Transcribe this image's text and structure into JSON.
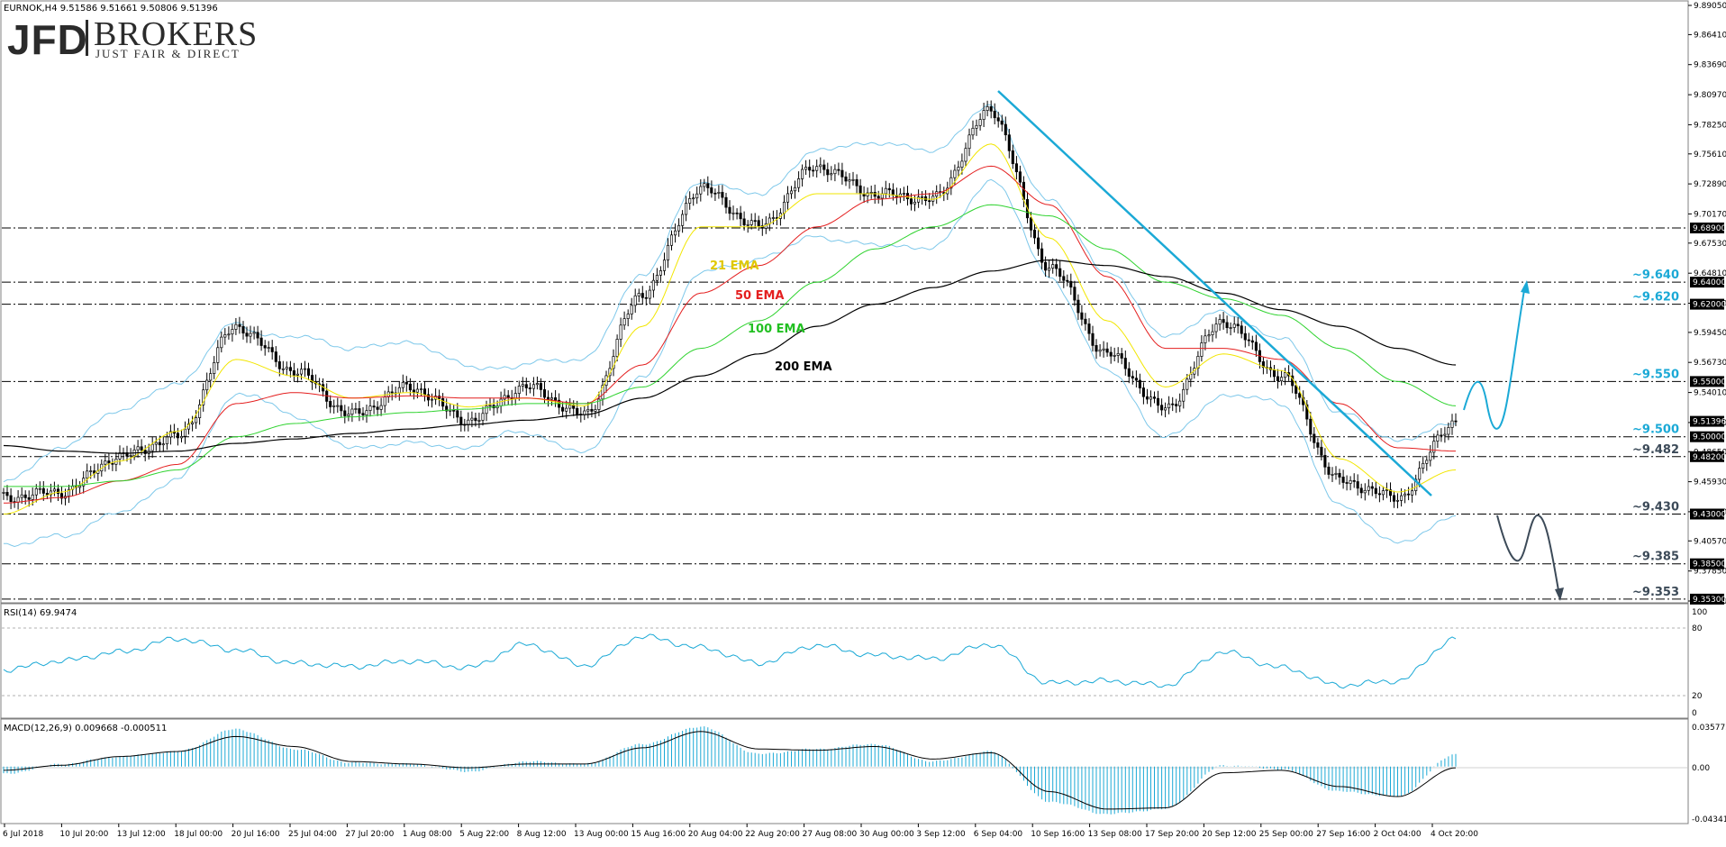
{
  "header": {
    "symbol_line": "EURNOK,H4  9.51586 9.51661 9.50806 9.51396",
    "logo_main": "JFD",
    "logo_secondary": "BROKERS",
    "logo_tagline": "JUST FAIR & DIRECT"
  },
  "colors": {
    "candles": "#000000",
    "ema21": "#f2e600",
    "ema50": "#e41f1f",
    "ema100": "#2fd32f",
    "ema200": "#000000",
    "bollinger": "#7ec8ea",
    "trendline": "#1ba9d6",
    "level_label": "#1ba9d6",
    "scenario_up": "#1ba9d6",
    "scenario_down": "#3c4a58",
    "rsi_line": "#1ba9d6",
    "macd_hist": "#1ba9d6",
    "macd_signal": "#000000"
  },
  "price_axis": {
    "ticks": [
      "9.89050",
      "9.86410",
      "9.83690",
      "9.80970",
      "9.78250",
      "9.75610",
      "9.72890",
      "9.70170",
      "9.67530",
      "9.64810",
      "9.62090",
      "9.59450",
      "9.56730",
      "9.54010",
      "9.51290",
      "9.48650",
      "9.45930",
      "9.43210",
      "9.40570",
      "9.37850",
      "9.35130"
    ],
    "tags": [
      "9.68900",
      "9.64000",
      "9.62000",
      "9.55000",
      "9.51396",
      "9.50000",
      "9.48200",
      "9.43000",
      "9.38500",
      "9.35300"
    ]
  },
  "levels": [
    {
      "label": "~9.640",
      "value": 9.64,
      "label_color": "#1ba9d6"
    },
    {
      "label": "~9.620",
      "value": 9.62,
      "label_color": "#1ba9d6"
    },
    {
      "label": "~9.550",
      "value": 9.55,
      "label_color": "#1ba9d6"
    },
    {
      "label": "~9.500",
      "value": 9.5,
      "label_color": "#1ba9d6"
    },
    {
      "label": "~9.482",
      "value": 9.482,
      "label_color": "#3c4a58"
    },
    {
      "label": "~9.430",
      "value": 9.43,
      "label_color": "#3c4a58"
    },
    {
      "label": "~9.385",
      "value": 9.385,
      "label_color": "#3c4a58"
    },
    {
      "label": "~9.353",
      "value": 9.353,
      "label_color": "#3c4a58"
    }
  ],
  "extra_levels": [
    9.689
  ],
  "ema_labels": [
    {
      "text": "21 EMA",
      "color": "#e0c800"
    },
    {
      "text": "50 EMA",
      "color": "#e41f1f"
    },
    {
      "text": "100 EMA",
      "color": "#22c022"
    },
    {
      "text": "200 EMA",
      "color": "#000000"
    }
  ],
  "x_axis": {
    "labels": [
      "6 Jul 2018",
      "10 Jul 20:00",
      "13 Jul 12:00",
      "18 Jul 00:00",
      "20 Jul 16:00",
      "25 Jul 04:00",
      "27 Jul 20:00",
      "1 Aug 08:00",
      "5 Aug 22:00",
      "8 Aug 12:00",
      "13 Aug 00:00",
      "15 Aug 16:00",
      "20 Aug 04:00",
      "22 Aug 20:00",
      "27 Aug 08:00",
      "30 Aug 00:00",
      "3 Sep 12:00",
      "6 Sep 04:00",
      "10 Sep 16:00",
      "13 Sep 08:00",
      "17 Sep 20:00",
      "20 Sep 12:00",
      "25 Sep 00:00",
      "27 Sep 16:00",
      "2 Oct 04:00",
      "4 Oct 20:00"
    ]
  },
  "rsi": {
    "title": "RSI(14) 69.9474",
    "axis_labels": [
      "100",
      "80",
      "20",
      "0"
    ]
  },
  "macd": {
    "title": "MACD(12,26,9) 0.009668 -0.000511",
    "axis_labels": [
      "0.035775",
      "0.00",
      "-0.04341"
    ]
  },
  "chart_data": [
    {
      "type": "line",
      "title": "EURNOK,H4",
      "description_series": "approximate close prices, one point every ~3 trading days",
      "x": [
        "6 Jul 2018",
        "10 Jul 20:00",
        "13 Jul 12:00",
        "18 Jul 00:00",
        "20 Jul 16:00",
        "25 Jul 04:00",
        "27 Jul 20:00",
        "1 Aug 08:00",
        "5 Aug 22:00",
        "8 Aug 12:00",
        "13 Aug 00:00",
        "15 Aug 16:00",
        "20 Aug 04:00",
        "22 Aug 20:00",
        "27 Aug 08:00",
        "30 Aug 00:00",
        "3 Sep 12:00",
        "6 Sep 04:00",
        "10 Sep 16:00",
        "13 Sep 08:00",
        "17 Sep 20:00",
        "20 Sep 12:00",
        "25 Sep 00:00",
        "27 Sep 16:00",
        "2 Oct 04:00",
        "4 Oct 20:00"
      ],
      "close": [
        9.445,
        9.45,
        9.482,
        9.5,
        9.6,
        9.56,
        9.52,
        9.545,
        9.515,
        9.545,
        9.52,
        9.63,
        9.725,
        9.69,
        9.745,
        9.72,
        9.715,
        9.795,
        9.655,
        9.575,
        9.525,
        9.605,
        9.555,
        9.46,
        9.445,
        9.514
      ],
      "series": [
        {
          "name": "21 EMA",
          "values": [
            9.43,
            9.45,
            9.478,
            9.505,
            9.57,
            9.555,
            9.535,
            9.54,
            9.527,
            9.535,
            9.528,
            9.6,
            9.69,
            9.69,
            9.72,
            9.72,
            9.715,
            9.765,
            9.68,
            9.605,
            9.545,
            9.575,
            9.56,
            9.48,
            9.45,
            9.47
          ]
        },
        {
          "name": "50 EMA",
          "values": [
            9.44,
            9.445,
            9.46,
            9.475,
            9.53,
            9.54,
            9.535,
            9.537,
            9.535,
            9.535,
            9.53,
            9.565,
            9.63,
            9.655,
            9.69,
            9.715,
            9.72,
            9.745,
            9.71,
            9.645,
            9.58,
            9.58,
            9.57,
            9.53,
            9.49,
            9.487
          ]
        },
        {
          "name": "100 EMA",
          "values": [
            9.455,
            9.455,
            9.46,
            9.47,
            9.5,
            9.512,
            9.518,
            9.522,
            9.525,
            9.53,
            9.53,
            9.545,
            9.58,
            9.605,
            9.64,
            9.67,
            9.69,
            9.71,
            9.7,
            9.67,
            9.64,
            9.625,
            9.61,
            9.58,
            9.55,
            9.528
          ]
        },
        {
          "name": "200 EMA",
          "values": [
            9.492,
            9.487,
            9.485,
            9.487,
            9.494,
            9.498,
            9.503,
            9.507,
            9.511,
            9.515,
            9.52,
            9.535,
            9.555,
            9.575,
            9.6,
            9.62,
            9.635,
            9.65,
            9.66,
            9.655,
            9.645,
            9.63,
            9.615,
            9.6,
            9.58,
            9.565
          ]
        }
      ],
      "ylim": [
        9.3513,
        9.8905
      ]
    },
    {
      "type": "line",
      "title": "RSI(14) 69.9474",
      "x": [
        "6 Jul 2018",
        "10 Jul 20:00",
        "13 Jul 12:00",
        "18 Jul 00:00",
        "20 Jul 16:00",
        "25 Jul 04:00",
        "27 Jul 20:00",
        "1 Aug 08:00",
        "5 Aug 22:00",
        "8 Aug 12:00",
        "13 Aug 00:00",
        "15 Aug 16:00",
        "20 Aug 04:00",
        "22 Aug 20:00",
        "27 Aug 08:00",
        "30 Aug 00:00",
        "3 Sep 12:00",
        "6 Sep 04:00",
        "10 Sep 16:00",
        "13 Sep 08:00",
        "17 Sep 20:00",
        "20 Sep 12:00",
        "25 Sep 00:00",
        "27 Sep 16:00",
        "2 Oct 04:00",
        "4 Oct 20:00"
      ],
      "values": [
        42,
        50,
        58,
        70,
        60,
        48,
        45,
        50,
        44,
        65,
        46,
        72,
        62,
        48,
        64,
        55,
        52,
        65,
        30,
        32,
        28,
        58,
        44,
        28,
        32,
        70
      ],
      "ylim": [
        0,
        100
      ]
    },
    {
      "type": "bar",
      "title": "MACD(12,26,9) 0.009668 -0.000511",
      "x": [
        "6 Jul 2018",
        "10 Jul 20:00",
        "13 Jul 12:00",
        "18 Jul 00:00",
        "20 Jul 16:00",
        "25 Jul 04:00",
        "27 Jul 20:00",
        "1 Aug 08:00",
        "5 Aug 22:00",
        "8 Aug 12:00",
        "13 Aug 00:00",
        "15 Aug 16:00",
        "20 Aug 04:00",
        "22 Aug 20:00",
        "27 Aug 08:00",
        "30 Aug 00:00",
        "3 Sep 12:00",
        "6 Sep 04:00",
        "10 Sep 16:00",
        "13 Sep 08:00",
        "17 Sep 20:00",
        "20 Sep 12:00",
        "25 Sep 00:00",
        "27 Sep 16:00",
        "2 Oct 04:00",
        "4 Oct 20:00"
      ],
      "histogram": [
        -0.006,
        0.002,
        0.008,
        0.012,
        0.03,
        0.014,
        0.003,
        0.002,
        -0.004,
        0.004,
        0.002,
        0.018,
        0.032,
        0.01,
        0.014,
        0.018,
        0.004,
        0.012,
        -0.028,
        -0.038,
        -0.034,
        0.001,
        -0.002,
        -0.02,
        -0.024,
        0.01
      ],
      "signal": [
        -0.003,
        0.001,
        0.008,
        0.012,
        0.024,
        0.016,
        0.004,
        0.002,
        -0.001,
        0.002,
        0.002,
        0.015,
        0.028,
        0.014,
        0.013,
        0.016,
        0.006,
        0.011,
        -0.02,
        -0.034,
        -0.033,
        -0.005,
        -0.003,
        -0.016,
        -0.024,
        -0.001
      ],
      "ylim": [
        -0.04341,
        0.035775
      ]
    }
  ]
}
